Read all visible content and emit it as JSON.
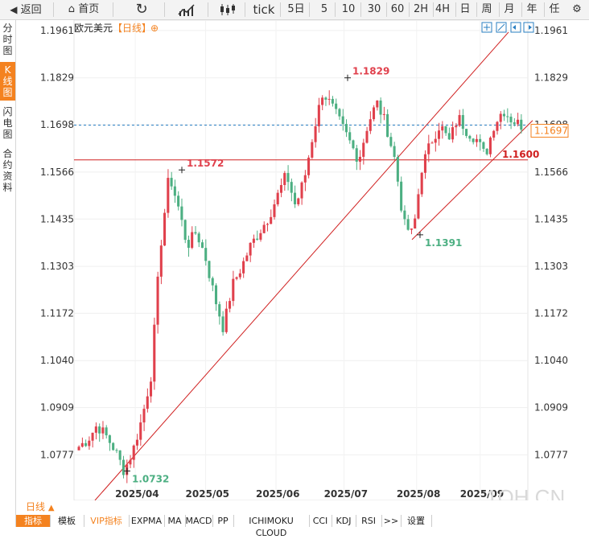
{
  "toolbar": {
    "back": "返回",
    "home": "首页",
    "periods": [
      "tick",
      "5日",
      "5",
      "10",
      "30",
      "60",
      "2H",
      "4H",
      "日",
      "周",
      "月",
      "年",
      "任"
    ]
  },
  "side_tabs": [
    "分时图",
    "K线图",
    "闪电图",
    "合约资料"
  ],
  "header": {
    "symbol": "欧元美元",
    "period": "【日线】",
    "add": "⊕"
  },
  "period_selector": "日线",
  "period_arrow": "▲",
  "watermark": "1QH.CN",
  "indicator_tabs": [
    "指标",
    "模板",
    "VIP指标",
    "EXPMA",
    "MA",
    "MACD",
    "PP",
    "ICHIMOKU CLOUD",
    "CCI",
    "KDJ",
    "RSI",
    ">>",
    "设置"
  ],
  "price_tag": "1.1697",
  "level_tag": "1.1600",
  "colors": {
    "up": "#e0404c",
    "down": "#4caf82",
    "accent": "#f4821f",
    "line": "#d02020",
    "dash": "#2a7fc2"
  },
  "chart_data": {
    "type": "candlestick",
    "y_ticks": [
      "1.1961",
      "1.1829",
      "1.1698",
      "1.1566",
      "1.1435",
      "1.1303",
      "1.1172",
      "1.1040",
      "1.0909",
      "1.0777"
    ],
    "ylim": [
      1.065,
      1.199
    ],
    "x_ticks": [
      "2025/04",
      "2025/05",
      "2025/06",
      "2025/07",
      "2025/08",
      "2025/09"
    ],
    "last_price": 1.1697,
    "horizontal_level": 1.16,
    "annotations": [
      {
        "label": "1.0732",
        "value": 1.0732,
        "kind": "low"
      },
      {
        "label": "1.1572",
        "value": 1.1572,
        "kind": "high"
      },
      {
        "label": "1.1829",
        "value": 1.1829,
        "kind": "high"
      },
      {
        "label": "1.1391",
        "value": 1.1391,
        "kind": "low"
      }
    ],
    "anchors": [
      {
        "value": 1.08
      },
      {
        "value": 1.082
      },
      {
        "value": 1.086
      },
      {
        "value": 1.083
      },
      {
        "value": 1.079
      },
      {
        "value": 1.0732
      },
      {
        "value": 1.079
      },
      {
        "value": 1.088
      },
      {
        "value": 1.1
      },
      {
        "value": 1.135
      },
      {
        "value": 1.156
      },
      {
        "value": 1.147
      },
      {
        "value": 1.136
      },
      {
        "value": 1.14
      },
      {
        "value": 1.133
      },
      {
        "value": 1.122
      },
      {
        "value": 1.113
      },
      {
        "value": 1.125
      },
      {
        "value": 1.13
      },
      {
        "value": 1.136
      },
      {
        "value": 1.14
      },
      {
        "value": 1.144
      },
      {
        "value": 1.15
      },
      {
        "value": 1.156
      },
      {
        "value": 1.147
      },
      {
        "value": 1.155
      },
      {
        "value": 1.168
      },
      {
        "value": 1.179
      },
      {
        "value": 1.175
      },
      {
        "value": 1.17
      },
      {
        "value": 1.165
      },
      {
        "value": 1.16
      },
      {
        "value": 1.17
      },
      {
        "value": 1.176
      },
      {
        "value": 1.17
      },
      {
        "value": 1.16
      },
      {
        "value": 1.142
      },
      {
        "value": 1.1391
      },
      {
        "value": 1.158
      },
      {
        "value": 1.165
      },
      {
        "value": 1.17
      },
      {
        "value": 1.165
      },
      {
        "value": 1.172
      },
      {
        "value": 1.168
      },
      {
        "value": 1.166
      },
      {
        "value": 1.161
      },
      {
        "value": 1.17
      },
      {
        "value": 1.174
      },
      {
        "value": 1.171
      },
      {
        "value": 1.1697
      }
    ]
  }
}
